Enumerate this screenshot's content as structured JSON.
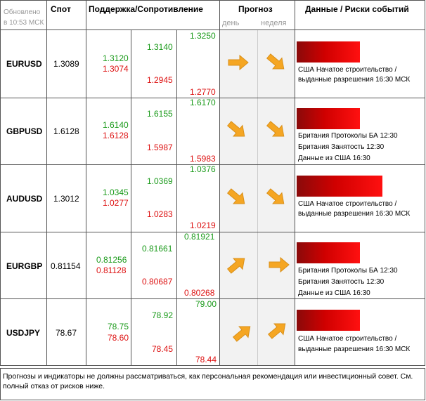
{
  "header": {
    "updated_line1": "Обновлено",
    "updated_line2": "в 10:53 МСК",
    "spot": "Спот",
    "support_resistance": "Поддержка/Сопротивление",
    "forecast": "Прогноз",
    "day": "день",
    "week": "неделя",
    "data_risks": "Данные / Риски событий"
  },
  "rows": [
    {
      "pair": "EURUSD",
      "spot": "1.3089",
      "s1": "1.3120",
      "s2": "1.3074",
      "m1": "1.3140",
      "m2": "1.2945",
      "o1": "1.3250",
      "o2": "1.2770",
      "day": "right",
      "week": "down-right",
      "events": [
        "США Начатое строительство /",
        "выданные разрешения 16:30 МСК"
      ]
    },
    {
      "pair": "GBPUSD",
      "spot": "1.6128",
      "s1": "1.6140",
      "s2": "1.6128",
      "m1": "1.6155",
      "m2": "1.5987",
      "o1": "1.6170",
      "o2": "1.5983",
      "day": "down-right",
      "week": "down-right",
      "events": [
        "Британия Протоколы БА 12:30",
        "Британия Занятость 12:30",
        "Данные из США 16:30"
      ]
    },
    {
      "pair": "AUDUSD",
      "spot": "1.3012",
      "s1": "1.0345",
      "s2": "1.0277",
      "m1": "1.0369",
      "m2": "1.0283",
      "o1": "1.0376",
      "o2": "1.0219",
      "day": "down-right",
      "week": "down-right",
      "events": [
        "США Начатое строительство /",
        "выданные разрешения 16:30 МСК"
      ]
    },
    {
      "pair": "EURGBP",
      "spot": "0.81154",
      "s1": "0.81256",
      "s2": "0.81128",
      "m1": "0.81661",
      "m2": "0.80687",
      "o1": "0.81921",
      "o2": "0.80268",
      "day": "up-right",
      "week": "right",
      "events": [
        "Британия Протоколы БА 12:30",
        "Британия Занятость 12:30",
        "Данные из США 16:30"
      ]
    },
    {
      "pair": "USDJPY",
      "spot": "78.67",
      "s1": "78.75",
      "s2": "78.60",
      "m1": "78.92",
      "m2": "78.45",
      "o1": "79.00",
      "o2": "78.44",
      "day": "up-right",
      "week": "up-right",
      "events": [
        "США Начатое строительство /",
        "выданные разрешения 16:30 МСК"
      ]
    }
  ],
  "risk_levels": [
    0.7,
    0.7,
    0.95,
    0.7,
    0.7
  ],
  "footer": "Прогнозы и индикаторы не должны рассматриваться, как персональная рекомендация или инвестиционный совет. См. полный отказ от рисков ниже.",
  "colors": {
    "green": "#1a9a1a",
    "red": "#dd1111",
    "arrow": "#f5a623"
  }
}
